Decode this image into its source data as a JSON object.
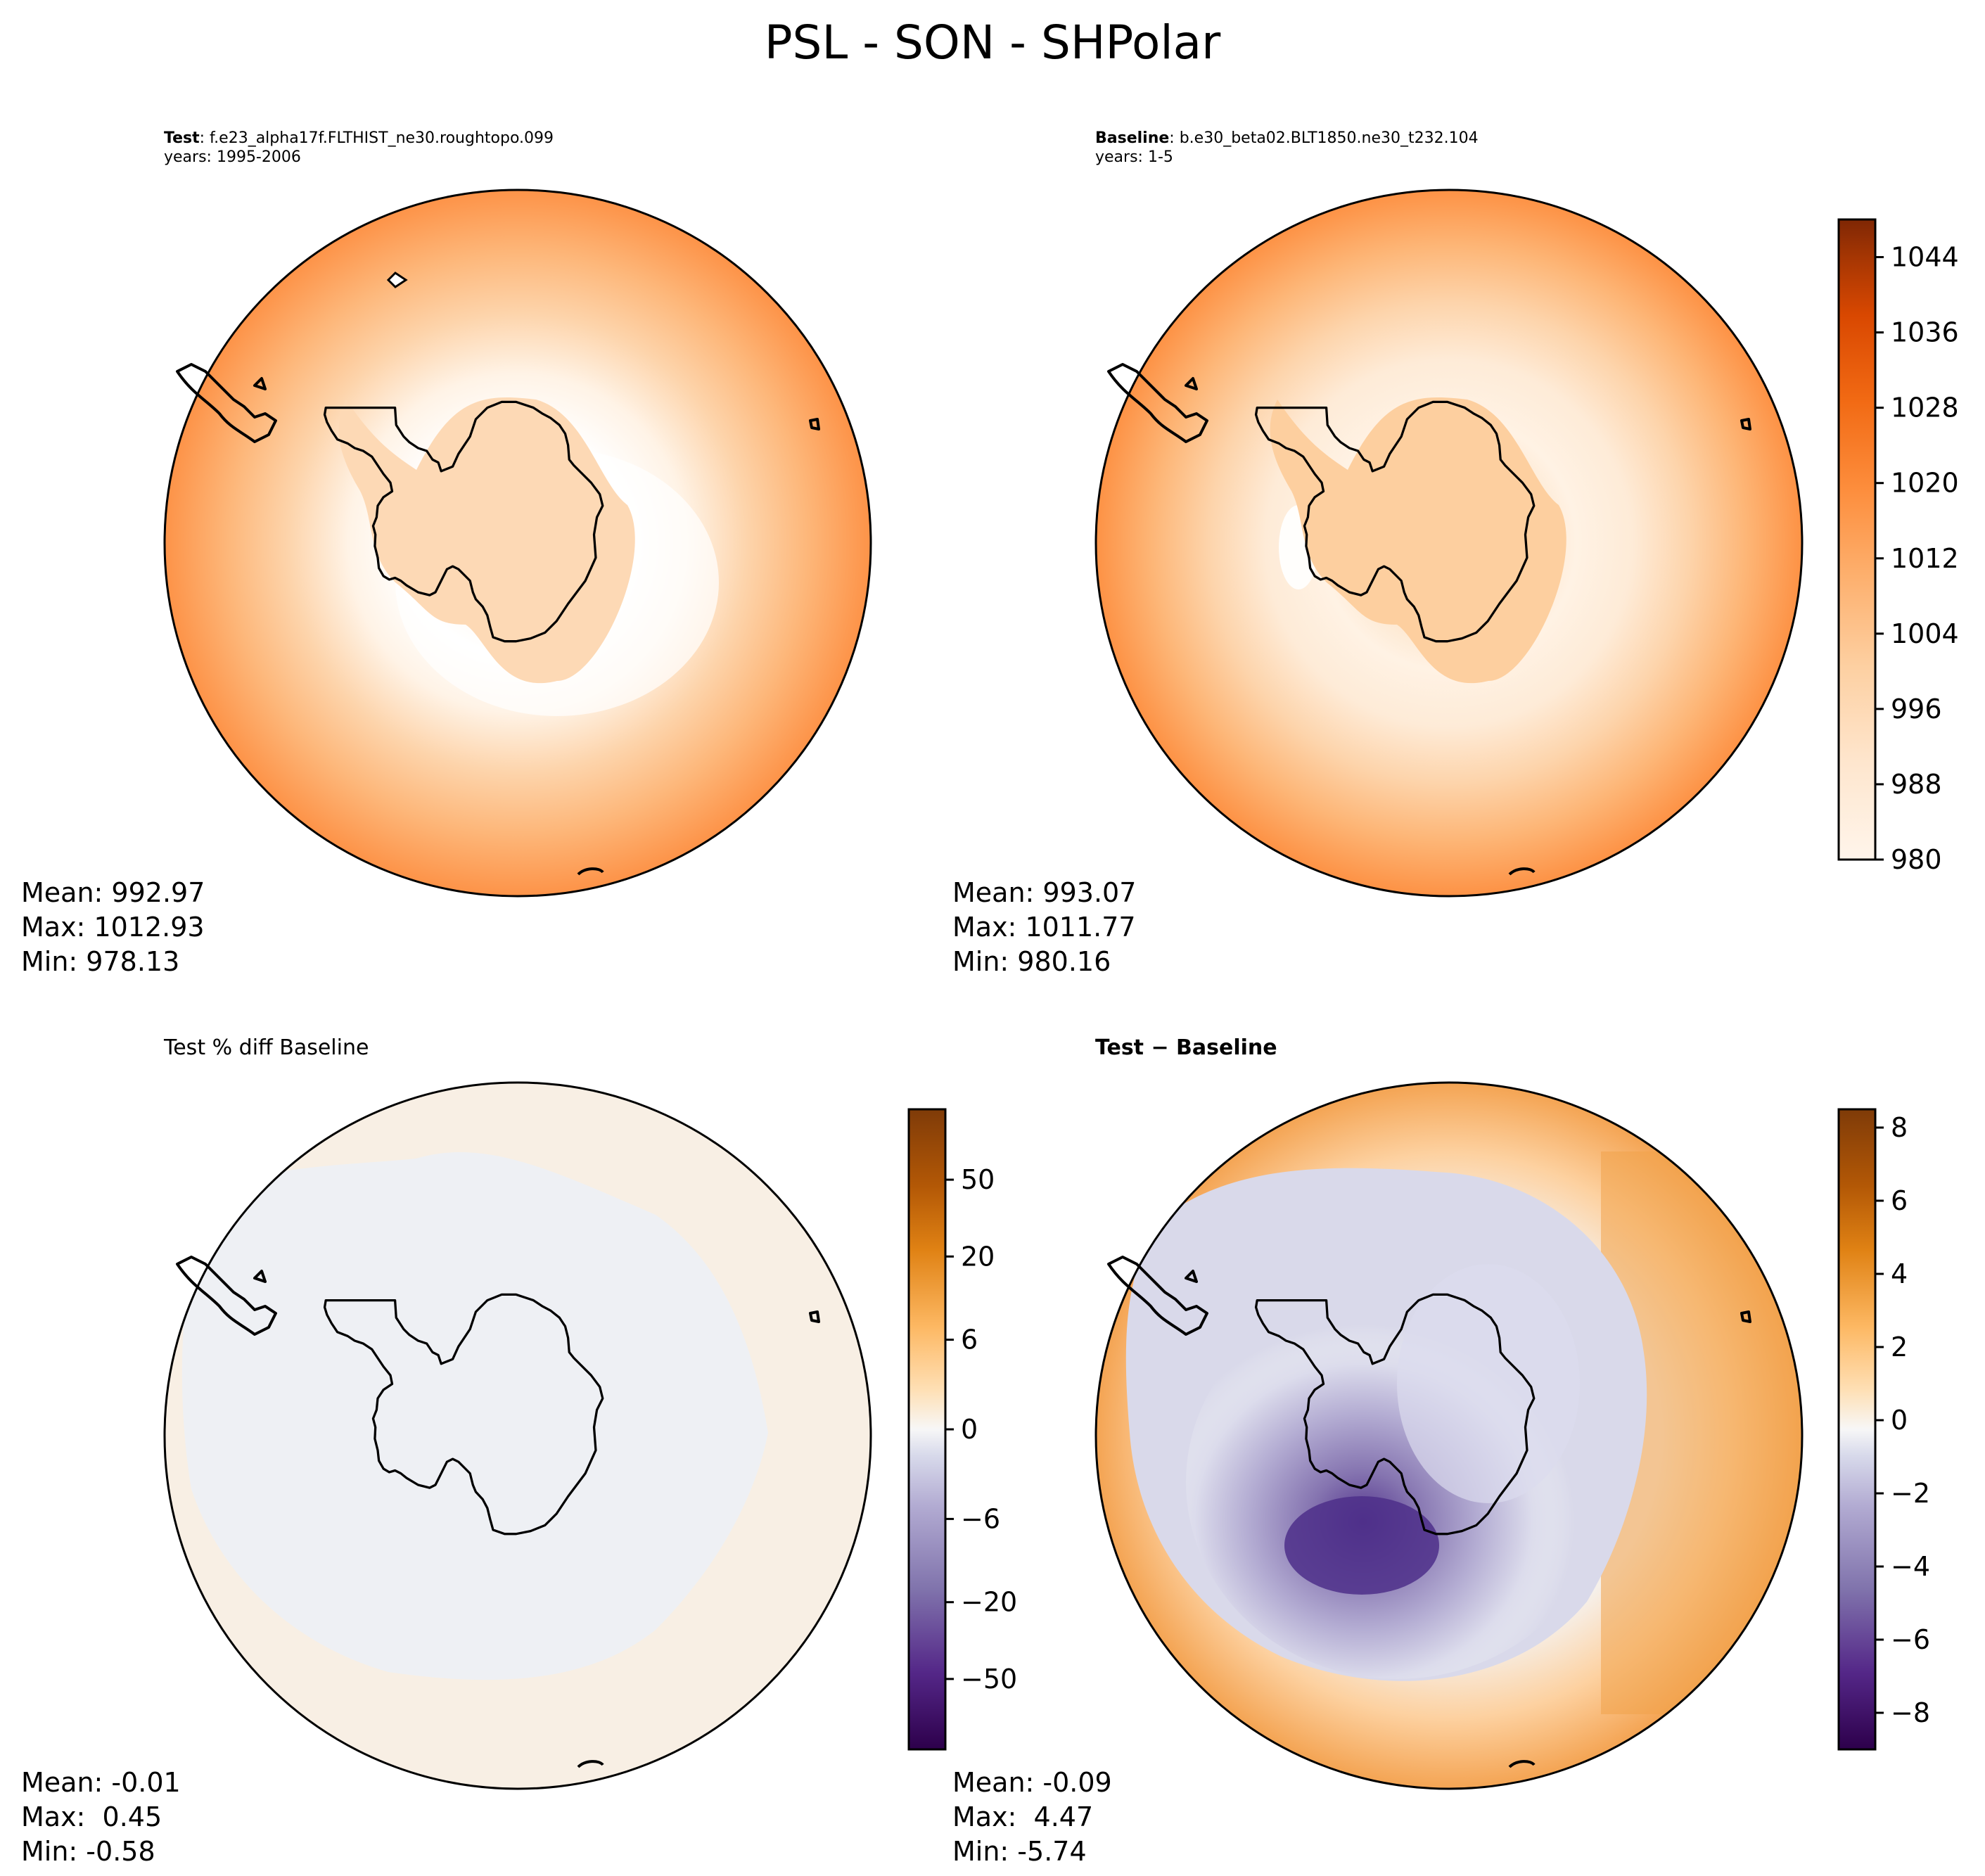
{
  "figure_title": "PSL - SON - SHPolar",
  "panels": {
    "test": {
      "label_bold": "Test",
      "case": ": f.e23_alpha17f.FLTHIST_ne30.roughtopo.099",
      "years": "years: 1995-2006",
      "stats": {
        "mean": "Mean: 992.97",
        "max": "Max: 1012.93",
        "min": "Min: 978.13"
      }
    },
    "baseline": {
      "label_bold": "Baseline",
      "case": ": b.e30_beta02.BLT1850.ne30_t232.104",
      "years": "years: 1-5",
      "stats": {
        "mean": "Mean: 993.07",
        "max": "Max: 1011.77",
        "min": "Min: 980.16"
      }
    },
    "pct_diff": {
      "title": "Test % diff Baseline",
      "stats": {
        "mean": "Mean: -0.01",
        "max": "Max:  0.45",
        "min": "Min: -0.58"
      }
    },
    "diff": {
      "title": "Test − Baseline",
      "stats": {
        "mean": "Mean: -0.09",
        "max": "Max:  4.47",
        "min": "Min: -5.74"
      }
    }
  },
  "colorbars": {
    "psl": {
      "min": 980,
      "max": 1048,
      "ticks": [
        980,
        988,
        996,
        1004,
        1012,
        1020,
        1028,
        1036,
        1044
      ],
      "tick_labels": [
        "980",
        "988",
        "996",
        "1004",
        "1012",
        "1020",
        "1028",
        "1036",
        "1044"
      ]
    },
    "pct": {
      "ticks": [
        50,
        20,
        6,
        0,
        -6,
        -20,
        -50
      ],
      "tick_labels": [
        "50",
        "20",
        "6",
        "0",
        "−6",
        "−20",
        "−50"
      ]
    },
    "diff": {
      "min": -9,
      "max": 8.5,
      "ticks": [
        8,
        6,
        4,
        2,
        0,
        -2,
        -4,
        -6,
        -8
      ],
      "tick_labels": [
        "8",
        "6",
        "4",
        "2",
        "0",
        "−2",
        "−4",
        "−6",
        "−8"
      ]
    }
  },
  "colors": {
    "oranges_ramp": [
      "#fff5eb",
      "#fee6ce",
      "#fdd0a2",
      "#fdae6b",
      "#fd8d3c",
      "#f16913",
      "#d94801",
      "#a63603",
      "#7f2704"
    ],
    "puor_low": "#2d004b",
    "puor_mid": "#f0f0f2",
    "puor_high": "#7f3b08"
  }
}
